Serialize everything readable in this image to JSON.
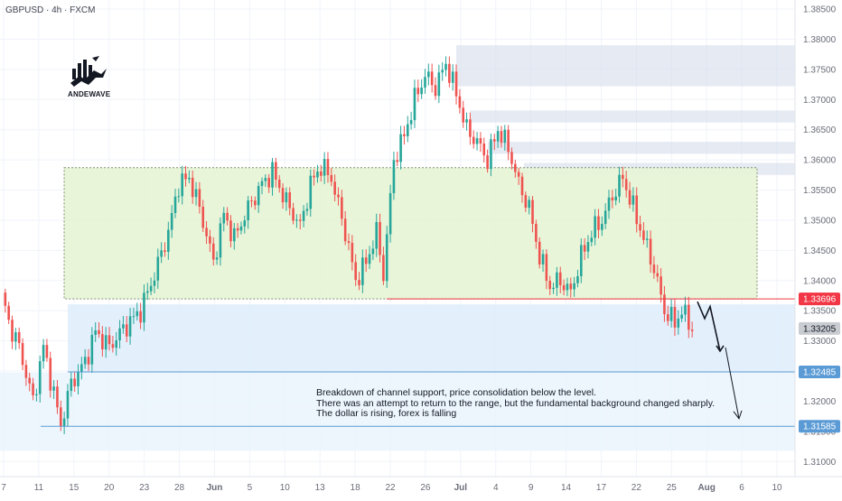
{
  "header": {
    "symbol": "GBPUSD · 4h · FXCM"
  },
  "logo": {
    "text": "ANDEWAVE"
  },
  "annotation": {
    "lines": [
      "Breakdown of channel support, price consolidation below the level.",
      "There was an attempt to return to the range, but the fundamental background changed sharply.",
      "The dollar is rising, forex is falling"
    ]
  },
  "colors": {
    "up": "#26a69a",
    "down": "#ef5350",
    "range_fill": "#e8f5d8",
    "supply_fill": "#d1dbe9",
    "demand_fill": "#dcecfb",
    "support_line": "#f23645",
    "blue_line": "#5b9bd5",
    "current_label": "#c9ccd1"
  },
  "chart_data": {
    "type": "candlestick",
    "symbol": "GBPUSD",
    "timeframe": "4h",
    "ylim": [
      1.3075,
      1.3865
    ],
    "x_ticks": [
      "7",
      "11",
      "15",
      "20",
      "23",
      "28",
      "Jun",
      "5",
      "10",
      "13",
      "18",
      "22",
      "26",
      "Jul",
      "4",
      "9",
      "14",
      "17",
      "22",
      "25",
      "Aug",
      "6",
      "10"
    ],
    "y_ticks": [
      "1.38500",
      "1.38000",
      "1.37500",
      "1.37000",
      "1.36500",
      "1.36000",
      "1.35500",
      "1.35000",
      "1.34500",
      "1.34000",
      "1.33500",
      "1.33000",
      "1.32500",
      "1.32000",
      "1.31500",
      "1.31000"
    ],
    "price_labels": [
      {
        "text": "1.33696",
        "value": 1.33696,
        "kind": "support"
      },
      {
        "text": "1.33205",
        "value": 1.33205,
        "kind": "current"
      },
      {
        "text": "1.32485",
        "value": 1.32485,
        "kind": "target"
      },
      {
        "text": "1.31585",
        "value": 1.31585,
        "kind": "target"
      }
    ],
    "range_box": {
      "top": 1.3587,
      "bottom": 1.33696
    },
    "path": [
      [
        0,
        1.338
      ],
      [
        2,
        1.333
      ],
      [
        5,
        1.329
      ],
      [
        9,
        1.32
      ],
      [
        12,
        1.329
      ],
      [
        17,
        1.316
      ],
      [
        20,
        1.323
      ],
      [
        24,
        1.3265
      ],
      [
        27,
        1.3315
      ],
      [
        31,
        1.329
      ],
      [
        35,
        1.332
      ],
      [
        40,
        1.335
      ],
      [
        44,
        1.341
      ],
      [
        48,
        1.348
      ],
      [
        51,
        1.356
      ],
      [
        54,
        1.357
      ],
      [
        57,
        1.352
      ],
      [
        61,
        1.343
      ],
      [
        64,
        1.351
      ],
      [
        67,
        1.347
      ],
      [
        71,
        1.352
      ],
      [
        75,
        1.356
      ],
      [
        78,
        1.358
      ],
      [
        82,
        1.353
      ],
      [
        86,
        1.349
      ],
      [
        89,
        1.356
      ],
      [
        92,
        1.359
      ],
      [
        95,
        1.357
      ],
      [
        99,
        1.348
      ],
      [
        102,
        1.34
      ],
      [
        105,
        1.343
      ],
      [
        108,
        1.348
      ],
      [
        110,
        1.341
      ],
      [
        113,
        1.36
      ],
      [
        116,
        1.364
      ],
      [
        119,
        1.37
      ],
      [
        122,
        1.374
      ],
      [
        125,
        1.372
      ],
      [
        128,
        1.376
      ],
      [
        131,
        1.371
      ],
      [
        134,
        1.365
      ],
      [
        137,
        1.363
      ],
      [
        140,
        1.36
      ],
      [
        143,
        1.365
      ],
      [
        146,
        1.362
      ],
      [
        149,
        1.356
      ],
      [
        152,
        1.352
      ],
      [
        155,
        1.344
      ],
      [
        158,
        1.339
      ],
      [
        161,
        1.34
      ],
      [
        164,
        1.338
      ],
      [
        167,
        1.344
      ],
      [
        170,
        1.348
      ],
      [
        173,
        1.35
      ],
      [
        176,
        1.354
      ],
      [
        179,
        1.357
      ],
      [
        182,
        1.352
      ],
      [
        185,
        1.347
      ],
      [
        188,
        1.342
      ],
      [
        191,
        1.335
      ],
      [
        194,
        1.333
      ],
      [
        196,
        1.335
      ],
      [
        199,
        1.3321
      ]
    ],
    "forecast": [
      [
        1.3365,
        1.3337,
        1.3357,
        1.3283
      ],
      [
        1.3283,
        1.3165
      ]
    ]
  }
}
